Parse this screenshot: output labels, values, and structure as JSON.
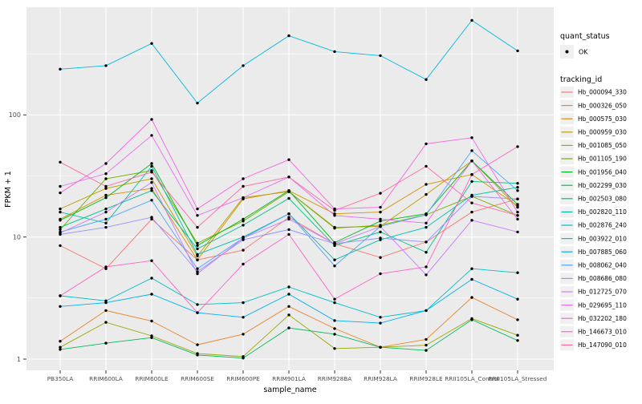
{
  "chart_data": {
    "type": "line",
    "title": "",
    "xlabel": "sample_name",
    "ylabel": "FPKM + 1",
    "y_scale": "log10",
    "y_ticks": [
      "1",
      "10",
      "100"
    ],
    "y_tick_values": [
      1,
      10,
      100
    ],
    "y_minor_tick_values": [
      3.162,
      31.62,
      316.2
    ],
    "ylim": [
      0.82,
      760
    ],
    "grid": true,
    "legend_position": "right",
    "categories": [
      "PB350LA",
      "RRIM600LA",
      "RRIM600LE",
      "RRIM600SE",
      "RRIM600PE",
      "RRIM901LA",
      "RRIM928BA",
      "RRIM928LA",
      "RRIM928LE",
      "RRII105LA_Control",
      "RRII105LA_Stressed"
    ],
    "legend": {
      "quant_status_title": "quant_status",
      "quant_status_items": [
        {
          "label": "OK",
          "marker": "point",
          "color": "#000000"
        }
      ],
      "tracking_id_title": "tracking_id"
    },
    "style": {
      "panel_bg": "#EBEBEB",
      "grid_color": "#FFFFFF",
      "point_color": "#000000",
      "legend_key_bg": "#F0F0F0",
      "tick_label_color": "#4D4D4D",
      "axis_title_color": "#000000"
    },
    "series": [
      {
        "id": "Hb_000094_330",
        "color": "#F8766D",
        "values": [
          8.5,
          5.5,
          14,
          6.5,
          7.8,
          14.5,
          8.8,
          6.8,
          9.1,
          16,
          20.5
        ]
      },
      {
        "id": "Hb_000326_050",
        "color": "#E9842C",
        "values": [
          1.4,
          2.5,
          2.05,
          1.31,
          1.6,
          2.7,
          1.78,
          1.25,
          1.45,
          3.2,
          2.1
        ]
      },
      {
        "id": "Hb_000575_030",
        "color": "#D69100",
        "values": [
          14,
          22,
          25,
          6.5,
          20.5,
          24,
          15.5,
          16,
          27,
          32.5,
          18
        ]
      },
      {
        "id": "Hb_000959_030",
        "color": "#BC9D00",
        "values": [
          17,
          25,
          30,
          7.0,
          21,
          23.5,
          12,
          12.2,
          22.3,
          42,
          17.5
        ]
      },
      {
        "id": "Hb_001085_050",
        "color": "#9CA700",
        "values": [
          1.25,
          2.0,
          1.55,
          1.11,
          1.05,
          2.3,
          1.22,
          1.25,
          1.3,
          2.15,
          1.57
        ]
      },
      {
        "id": "Hb_001105_190",
        "color": "#6FB000",
        "values": [
          11.5,
          30,
          35,
          8.9,
          13.5,
          23.5,
          11.8,
          12.5,
          15.2,
          21.5,
          15
        ]
      },
      {
        "id": "Hb_001956_040",
        "color": "#00B81B",
        "values": [
          13.7,
          21,
          40,
          8.5,
          14,
          24,
          9,
          13.5,
          15.5,
          42,
          18.5
        ]
      },
      {
        "id": "Hb_002299_030",
        "color": "#00BD5C",
        "values": [
          1.2,
          1.35,
          1.5,
          1.08,
          1.02,
          1.8,
          1.6,
          1.25,
          1.18,
          2.1,
          1.42
        ]
      },
      {
        "id": "Hb_002503_080",
        "color": "#00C085",
        "values": [
          12,
          17,
          24,
          8.0,
          12.5,
          20.7,
          8.5,
          11,
          7.5,
          28.5,
          27.5
        ]
      },
      {
        "id": "Hb_002820_110",
        "color": "#00C0A8",
        "values": [
          16,
          13,
          38,
          7.2,
          10,
          15.5,
          6.5,
          9.5,
          12,
          22,
          25.5
        ]
      },
      {
        "id": "Hb_002876_240",
        "color": "#00BEC5",
        "values": [
          3.3,
          3.0,
          4.6,
          2.8,
          2.9,
          3.9,
          2.9,
          2.2,
          2.5,
          5.5,
          5.1
        ]
      },
      {
        "id": "Hb_003922_010",
        "color": "#00BADE",
        "values": [
          237,
          253,
          385,
          125,
          253,
          445,
          330,
          306,
          195,
          595,
          335
        ]
      },
      {
        "id": "Hb_007885_060",
        "color": "#00B0F1",
        "values": [
          2.7,
          2.9,
          3.4,
          2.4,
          2.2,
          3.4,
          2.07,
          1.97,
          2.5,
          4.5,
          3.1
        ]
      },
      {
        "id": "Hb_008062_040",
        "color": "#51A2FF",
        "values": [
          11,
          14,
          20,
          5.5,
          9.8,
          15.5,
          5.8,
          12.2,
          15.2,
          51,
          24
        ]
      },
      {
        "id": "Hb_008686_080",
        "color": "#9490FF",
        "values": [
          10.5,
          12,
          14.5,
          5.2,
          9.5,
          11.5,
          8.8,
          9.8,
          9.1,
          21.5,
          20.5
        ]
      },
      {
        "id": "Hb_012725_070",
        "color": "#C77CFF",
        "values": [
          10.8,
          16,
          28,
          5.0,
          9.8,
          14,
          8.8,
          12.2,
          4.9,
          13.7,
          11
        ]
      },
      {
        "id": "Hb_029695_110",
        "color": "#E86BF3",
        "values": [
          26,
          33,
          68,
          15,
          21,
          31,
          15,
          14,
          13,
          42,
          14
        ]
      },
      {
        "id": "Hb_032202_180",
        "color": "#F763DF",
        "values": [
          23,
          40,
          92,
          17,
          30,
          43,
          17,
          17.5,
          58,
          65,
          16
        ]
      },
      {
        "id": "Hb_146673_010",
        "color": "#FF61C7",
        "values": [
          3.3,
          5.7,
          6.4,
          2.4,
          6.0,
          10.5,
          3.1,
          5.0,
          5.7,
          32.5,
          55
        ]
      },
      {
        "id": "Hb_147090_010",
        "color": "#FF68A5",
        "values": [
          41,
          26,
          34,
          12,
          26,
          31,
          16.5,
          22.8,
          38,
          19,
          15
        ]
      }
    ]
  }
}
